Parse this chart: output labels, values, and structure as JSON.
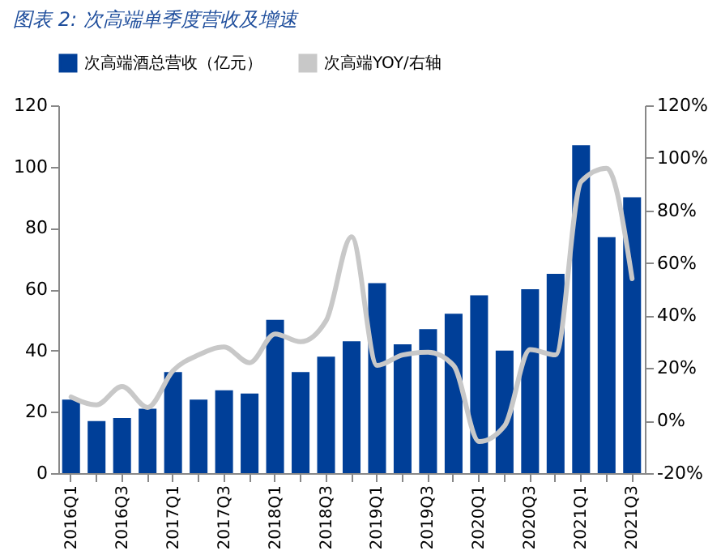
{
  "chart_data": {
    "type": "bar",
    "title": "图表 2:  次高端单季度营收及增速",
    "categories": [
      "2016Q1",
      null,
      "2016Q3",
      null,
      "2017Q1",
      null,
      "2017Q3",
      null,
      "2018Q1",
      null,
      "2018Q3",
      null,
      "2019Q1",
      null,
      "2019Q3",
      null,
      "2020Q1",
      null,
      "2020Q3",
      null,
      "2021Q1",
      null,
      "2021Q3"
    ],
    "series": [
      {
        "name": "次高端酒总营收（亿元）",
        "color": "#003f98",
        "values": [
          24,
          17,
          18,
          21,
          33,
          24,
          27,
          26,
          50,
          33,
          38,
          43,
          62,
          42,
          47,
          52,
          58,
          40,
          60,
          65,
          107,
          77,
          90
        ]
      },
      {
        "name": "次高端YOY/右轴",
        "type": "line",
        "axis": "y2",
        "color": "#c8c8c8",
        "values": [
          9,
          6,
          13,
          5,
          19,
          25,
          28,
          22,
          33,
          30,
          38,
          70,
          21,
          25,
          26,
          21,
          -8,
          -2,
          27,
          25,
          91,
          96,
          54
        ]
      }
    ],
    "ylim": [
      0,
      120
    ],
    "yticks": [
      0,
      20,
      40,
      60,
      80,
      100,
      120
    ],
    "y2lim": [
      -20,
      120
    ],
    "y2ticks": [
      {
        "value": -20,
        "label": "-20%"
      },
      {
        "value": 0,
        "label": "0%"
      },
      {
        "value": 20,
        "label": "20%"
      },
      {
        "value": 40,
        "label": "40%"
      },
      {
        "value": 60,
        "label": "60%"
      },
      {
        "value": 80,
        "label": "80%"
      },
      {
        "value": 100,
        "label": "100%"
      },
      {
        "value": 120,
        "label": "120%"
      }
    ],
    "legend": "top",
    "grid": false
  }
}
